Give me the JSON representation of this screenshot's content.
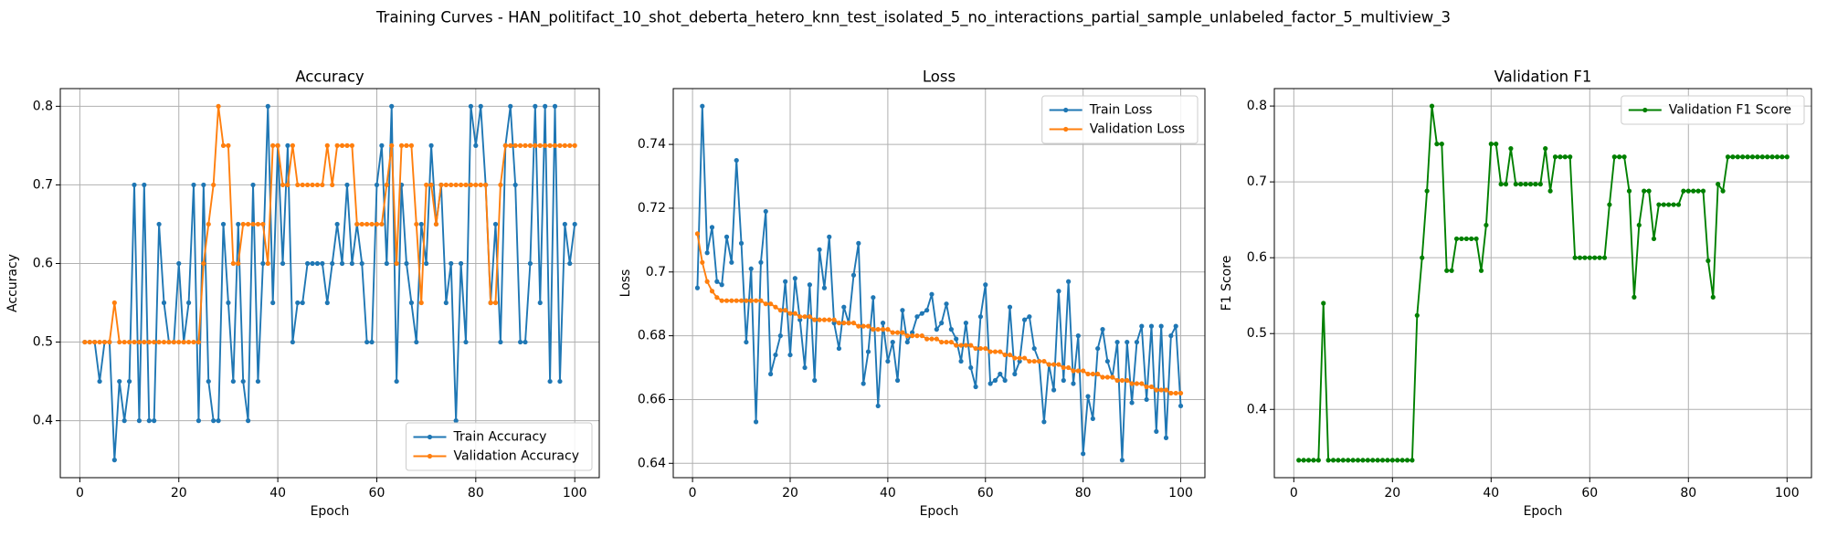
{
  "title": "Training Curves - HAN_politifact_10_shot_deberta_hetero_knn_test_isolated_5_no_interactions_partial_sample_unlabeled_factor_5_multiview_3",
  "chart_data": [
    {
      "type": "line",
      "title": "Accuracy",
      "x_label": "Epoch",
      "y_label": "Accuracy",
      "grid": true,
      "legend": "lower right",
      "x": [
        1,
        2,
        3,
        4,
        5,
        6,
        7,
        8,
        9,
        10,
        11,
        12,
        13,
        14,
        15,
        16,
        17,
        18,
        19,
        20,
        21,
        22,
        23,
        24,
        25,
        26,
        27,
        28,
        29,
        30,
        31,
        32,
        33,
        34,
        35,
        36,
        37,
        38,
        39,
        40,
        41,
        42,
        43,
        44,
        45,
        46,
        47,
        48,
        49,
        50,
        51,
        52,
        53,
        54,
        55,
        56,
        57,
        58,
        59,
        60,
        61,
        62,
        63,
        64,
        65,
        66,
        67,
        68,
        69,
        70,
        71,
        72,
        73,
        74,
        75,
        76,
        77,
        78,
        79,
        80,
        81,
        82,
        83,
        84,
        85,
        86,
        87,
        88,
        89,
        90,
        91,
        92,
        93,
        94,
        95,
        96,
        97,
        98,
        99,
        100
      ],
      "xlim": [
        -3.95,
        104.95
      ],
      "xticks": [
        0,
        20,
        40,
        60,
        80,
        100
      ],
      "ylim": [
        0.3275,
        0.8225
      ],
      "yticks": [
        0.4,
        0.5,
        0.6,
        0.7,
        0.8
      ],
      "series": [
        {
          "name": "Train Accuracy",
          "color": "#1f77b4",
          "values": [
            0.5,
            0.5,
            0.5,
            0.45,
            0.5,
            0.5,
            0.35,
            0.45,
            0.4,
            0.45,
            0.7,
            0.4,
            0.7,
            0.4,
            0.4,
            0.65,
            0.55,
            0.5,
            0.5,
            0.6,
            0.5,
            0.55,
            0.7,
            0.4,
            0.7,
            0.45,
            0.4,
            0.4,
            0.65,
            0.55,
            0.45,
            0.65,
            0.45,
            0.4,
            0.7,
            0.45,
            0.6,
            0.8,
            0.55,
            0.75,
            0.6,
            0.75,
            0.5,
            0.55,
            0.55,
            0.6,
            0.6,
            0.6,
            0.6,
            0.55,
            0.6,
            0.65,
            0.6,
            0.7,
            0.6,
            0.65,
            0.6,
            0.5,
            0.5,
            0.7,
            0.75,
            0.6,
            0.8,
            0.45,
            0.7,
            0.6,
            0.55,
            0.5,
            0.65,
            0.6,
            0.75,
            0.65,
            0.7,
            0.55,
            0.6,
            0.4,
            0.6,
            0.5,
            0.8,
            0.75,
            0.8,
            0.7,
            0.55,
            0.65,
            0.5,
            0.75,
            0.8,
            0.7,
            0.5,
            0.5,
            0.6,
            0.8,
            0.55,
            0.8,
            0.45,
            0.8,
            0.45,
            0.65,
            0.6,
            0.65
          ]
        },
        {
          "name": "Validation Accuracy",
          "color": "#ff7f0e",
          "values": [
            0.5,
            0.5,
            0.5,
            0.5,
            0.5,
            0.5,
            0.55,
            0.5,
            0.5,
            0.5,
            0.5,
            0.5,
            0.5,
            0.5,
            0.5,
            0.5,
            0.5,
            0.5,
            0.5,
            0.5,
            0.5,
            0.5,
            0.5,
            0.5,
            0.6,
            0.65,
            0.7,
            0.8,
            0.75,
            0.75,
            0.6,
            0.6,
            0.65,
            0.65,
            0.65,
            0.65,
            0.65,
            0.6,
            0.75,
            0.75,
            0.7,
            0.7,
            0.75,
            0.7,
            0.7,
            0.7,
            0.7,
            0.7,
            0.7,
            0.75,
            0.7,
            0.75,
            0.75,
            0.75,
            0.75,
            0.65,
            0.65,
            0.65,
            0.65,
            0.65,
            0.65,
            0.7,
            0.75,
            0.6,
            0.75,
            0.75,
            0.75,
            0.65,
            0.55,
            0.7,
            0.7,
            0.65,
            0.7,
            0.7,
            0.7,
            0.7,
            0.7,
            0.7,
            0.7,
            0.7,
            0.7,
            0.7,
            0.55,
            0.55,
            0.7,
            0.75,
            0.75,
            0.75,
            0.75,
            0.75,
            0.75,
            0.75,
            0.75,
            0.75,
            0.75,
            0.75,
            0.75,
            0.75,
            0.75,
            0.75
          ]
        }
      ]
    },
    {
      "type": "line",
      "title": "Loss",
      "x_label": "Epoch",
      "y_label": "Loss",
      "grid": true,
      "legend": "upper right",
      "x": [
        1,
        2,
        3,
        4,
        5,
        6,
        7,
        8,
        9,
        10,
        11,
        12,
        13,
        14,
        15,
        16,
        17,
        18,
        19,
        20,
        21,
        22,
        23,
        24,
        25,
        26,
        27,
        28,
        29,
        30,
        31,
        32,
        33,
        34,
        35,
        36,
        37,
        38,
        39,
        40,
        41,
        42,
        43,
        44,
        45,
        46,
        47,
        48,
        49,
        50,
        51,
        52,
        53,
        54,
        55,
        56,
        57,
        58,
        59,
        60,
        61,
        62,
        63,
        64,
        65,
        66,
        67,
        68,
        69,
        70,
        71,
        72,
        73,
        74,
        75,
        76,
        77,
        78,
        79,
        80,
        81,
        82,
        83,
        84,
        85,
        86,
        87,
        88,
        89,
        90,
        91,
        92,
        93,
        94,
        95,
        96,
        97,
        98,
        99,
        100
      ],
      "xlim": [
        -3.95,
        104.95
      ],
      "xticks": [
        0,
        20,
        40,
        60,
        80,
        100
      ],
      "ylim": [
        0.6355,
        0.7575
      ],
      "yticks": [
        0.64,
        0.66,
        0.68,
        0.7,
        0.72,
        0.74
      ],
      "series": [
        {
          "name": "Train Loss",
          "color": "#1f77b4",
          "values": [
            0.695,
            0.752,
            0.706,
            0.714,
            0.697,
            0.696,
            0.711,
            0.703,
            0.735,
            0.709,
            0.678,
            0.701,
            0.653,
            0.703,
            0.719,
            0.668,
            0.674,
            0.68,
            0.697,
            0.674,
            0.698,
            0.685,
            0.67,
            0.696,
            0.666,
            0.707,
            0.695,
            0.711,
            0.684,
            0.676,
            0.689,
            0.684,
            0.699,
            0.709,
            0.665,
            0.675,
            0.692,
            0.658,
            0.684,
            0.672,
            0.678,
            0.666,
            0.688,
            0.678,
            0.681,
            0.686,
            0.687,
            0.688,
            0.693,
            0.682,
            0.684,
            0.69,
            0.682,
            0.679,
            0.672,
            0.684,
            0.67,
            0.664,
            0.686,
            0.696,
            0.665,
            0.666,
            0.668,
            0.666,
            0.689,
            0.668,
            0.672,
            0.685,
            0.686,
            0.676,
            0.672,
            0.653,
            0.671,
            0.663,
            0.694,
            0.666,
            0.697,
            0.665,
            0.68,
            0.643,
            0.661,
            0.654,
            0.676,
            0.682,
            0.672,
            0.667,
            0.678,
            0.641,
            0.678,
            0.659,
            0.678,
            0.683,
            0.66,
            0.683,
            0.65,
            0.683,
            0.648,
            0.68,
            0.683,
            0.658
          ]
        },
        {
          "name": "Validation Loss",
          "color": "#ff7f0e",
          "values": [
            0.712,
            0.703,
            0.697,
            0.694,
            0.692,
            0.691,
            0.691,
            0.691,
            0.691,
            0.691,
            0.691,
            0.691,
            0.691,
            0.691,
            0.69,
            0.69,
            0.689,
            0.688,
            0.688,
            0.687,
            0.687,
            0.686,
            0.686,
            0.686,
            0.685,
            0.685,
            0.685,
            0.685,
            0.685,
            0.684,
            0.684,
            0.684,
            0.684,
            0.683,
            0.683,
            0.683,
            0.682,
            0.682,
            0.682,
            0.682,
            0.681,
            0.681,
            0.681,
            0.68,
            0.68,
            0.68,
            0.68,
            0.679,
            0.679,
            0.679,
            0.678,
            0.678,
            0.678,
            0.677,
            0.677,
            0.677,
            0.677,
            0.676,
            0.676,
            0.676,
            0.675,
            0.675,
            0.675,
            0.674,
            0.674,
            0.673,
            0.673,
            0.673,
            0.672,
            0.672,
            0.672,
            0.672,
            0.671,
            0.671,
            0.671,
            0.67,
            0.67,
            0.669,
            0.669,
            0.669,
            0.668,
            0.668,
            0.668,
            0.667,
            0.667,
            0.667,
            0.666,
            0.666,
            0.666,
            0.665,
            0.665,
            0.665,
            0.664,
            0.664,
            0.663,
            0.663,
            0.663,
            0.662,
            0.662,
            0.662
          ]
        }
      ]
    },
    {
      "type": "line",
      "title": "Validation F1",
      "x_label": "Epoch",
      "y_label": "F1 Score",
      "grid": true,
      "legend": "upper right",
      "x": [
        1,
        2,
        3,
        4,
        5,
        6,
        7,
        8,
        9,
        10,
        11,
        12,
        13,
        14,
        15,
        16,
        17,
        18,
        19,
        20,
        21,
        22,
        23,
        24,
        25,
        26,
        27,
        28,
        29,
        30,
        31,
        32,
        33,
        34,
        35,
        36,
        37,
        38,
        39,
        40,
        41,
        42,
        43,
        44,
        45,
        46,
        47,
        48,
        49,
        50,
        51,
        52,
        53,
        54,
        55,
        56,
        57,
        58,
        59,
        60,
        61,
        62,
        63,
        64,
        65,
        66,
        67,
        68,
        69,
        70,
        71,
        72,
        73,
        74,
        75,
        76,
        77,
        78,
        79,
        80,
        81,
        82,
        83,
        84,
        85,
        86,
        87,
        88,
        89,
        90,
        91,
        92,
        93,
        94,
        95,
        96,
        97,
        98,
        99,
        100
      ],
      "xlim": [
        -3.95,
        104.95
      ],
      "xticks": [
        0,
        20,
        40,
        60,
        80,
        100
      ],
      "ylim": [
        0.31,
        0.823
      ],
      "yticks": [
        0.4,
        0.5,
        0.6,
        0.7,
        0.8
      ],
      "series": [
        {
          "name": "Validation F1 Score",
          "color": "#008000",
          "values": [
            0.333,
            0.333,
            0.333,
            0.333,
            0.333,
            0.54,
            0.333,
            0.333,
            0.333,
            0.333,
            0.333,
            0.333,
            0.333,
            0.333,
            0.333,
            0.333,
            0.333,
            0.333,
            0.333,
            0.333,
            0.333,
            0.333,
            0.333,
            0.333,
            0.524,
            0.6,
            0.688,
            0.8,
            0.75,
            0.75,
            0.583,
            0.583,
            0.625,
            0.625,
            0.625,
            0.625,
            0.625,
            0.583,
            0.643,
            0.75,
            0.75,
            0.697,
            0.697,
            0.744,
            0.697,
            0.697,
            0.697,
            0.697,
            0.697,
            0.697,
            0.744,
            0.688,
            0.733,
            0.733,
            0.733,
            0.733,
            0.6,
            0.6,
            0.6,
            0.6,
            0.6,
            0.6,
            0.6,
            0.67,
            0.733,
            0.733,
            0.733,
            0.688,
            0.548,
            0.643,
            0.688,
            0.688,
            0.625,
            0.67,
            0.67,
            0.67,
            0.67,
            0.67,
            0.688,
            0.688,
            0.688,
            0.688,
            0.688,
            0.596,
            0.548,
            0.697,
            0.688,
            0.733,
            0.733,
            0.733,
            0.733,
            0.733,
            0.733,
            0.733,
            0.733,
            0.733,
            0.733,
            0.733,
            0.733,
            0.733
          ]
        }
      ]
    }
  ]
}
